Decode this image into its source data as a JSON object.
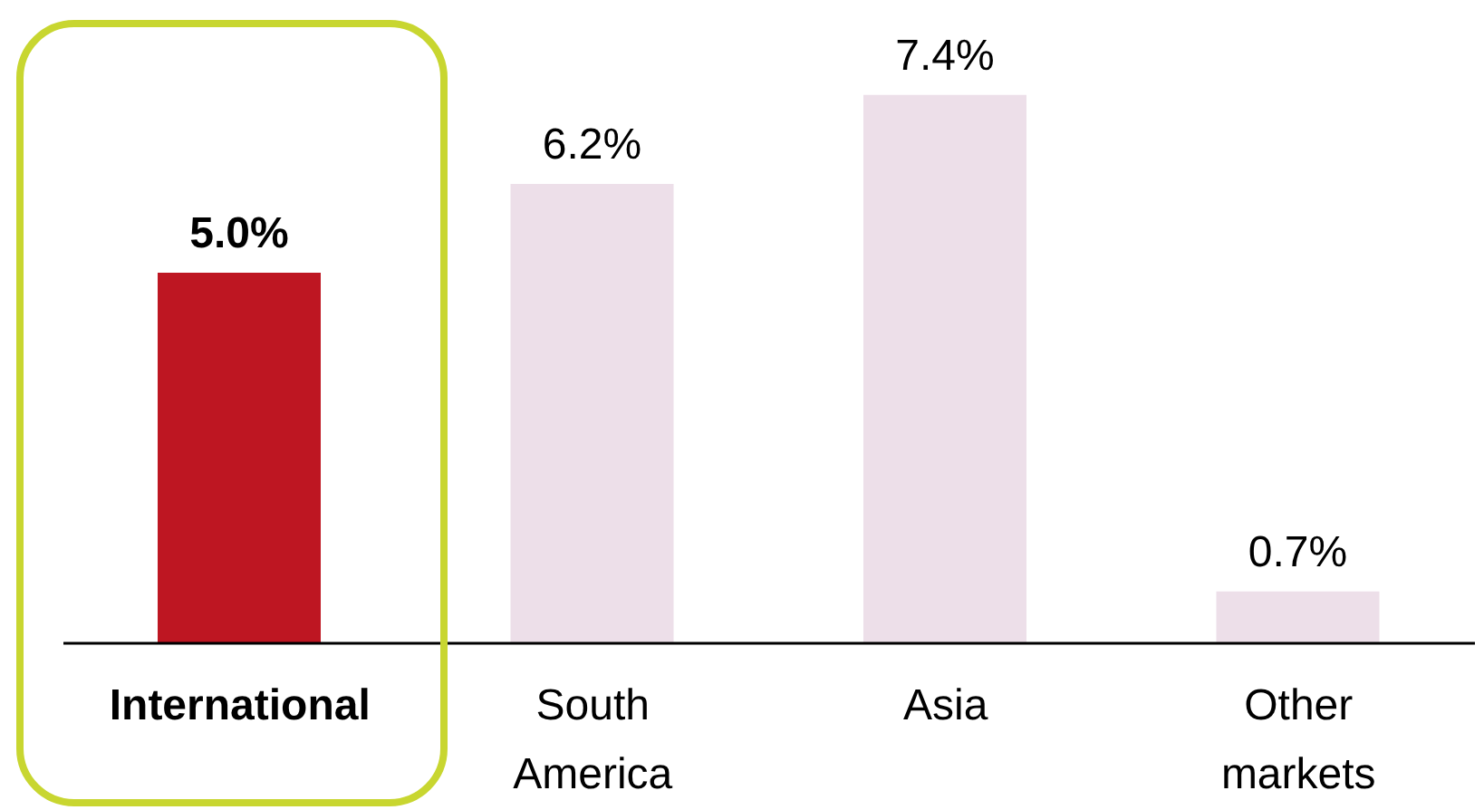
{
  "chart_data": {
    "type": "bar",
    "categories": [
      "International",
      "South America",
      "Asia",
      "Other markets"
    ],
    "values": [
      5.0,
      6.2,
      7.4,
      0.7
    ],
    "colors": [
      "#be1622",
      "#eddfe9",
      "#eddfe9",
      "#eddfe9"
    ],
    "value_labels": [
      "5.0%",
      "6.2%",
      "7.4%",
      "0.7%"
    ],
    "tick_labels": "x",
    "grid": false,
    "legend": false
  }
}
